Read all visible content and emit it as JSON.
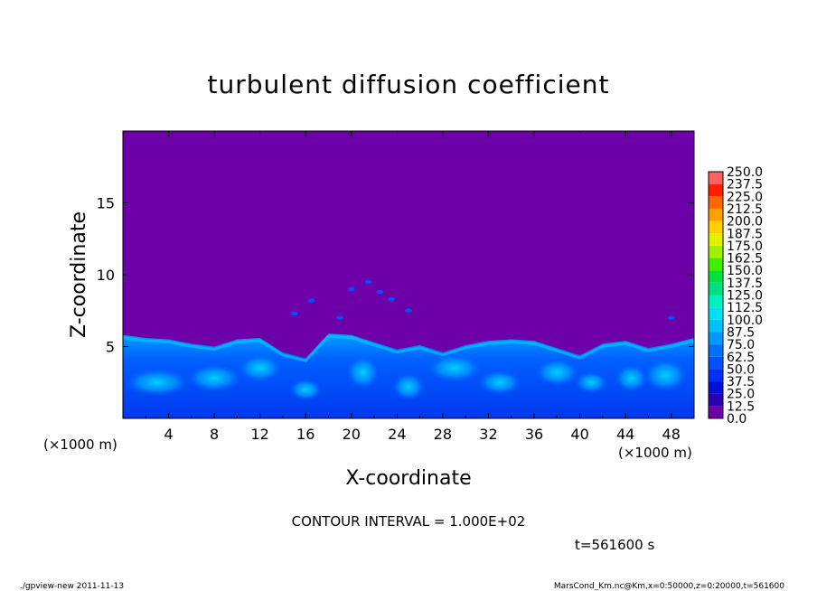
{
  "chart_data": {
    "type": "heatmap",
    "title": "turbulent diffusion coefficient",
    "xlabel": "X-coordinate",
    "ylabel": "Z-coordinate",
    "x_unit": "(×1000 m)",
    "y_unit": "(×1000 m)",
    "xlim": [
      0,
      50
    ],
    "ylim": [
      0,
      20
    ],
    "x_ticks": [
      "4",
      "8",
      "12",
      "16",
      "20",
      "24",
      "28",
      "32",
      "36",
      "40",
      "44",
      "48"
    ],
    "y_ticks": [
      "5",
      "10",
      "15"
    ],
    "colorbar_levels": [
      "0.0",
      "12.5",
      "25.0",
      "37.5",
      "50.0",
      "62.5",
      "75.0",
      "87.5",
      "100.0",
      "112.5",
      "125.0",
      "137.5",
      "150.0",
      "162.5",
      "175.0",
      "187.5",
      "200.0",
      "212.5",
      "225.0",
      "237.5",
      "250.0"
    ],
    "colorbar_colors": [
      "#6e00aa",
      "#2a00b4",
      "#0010d8",
      "#0030f4",
      "#0050ff",
      "#0070ff",
      "#0098ff",
      "#00c0ff",
      "#00e0f0",
      "#00f0c0",
      "#00e080",
      "#00e040",
      "#40f000",
      "#a0f000",
      "#e0f000",
      "#ffd000",
      "#ffa000",
      "#ff6800",
      "#ff2000",
      "#ff6060"
    ],
    "profile_x": [
      0,
      2,
      4,
      6,
      8,
      10,
      12,
      14,
      16,
      18,
      20,
      22,
      24,
      26,
      28,
      30,
      32,
      34,
      36,
      38,
      40,
      42,
      44,
      46,
      48,
      50
    ],
    "profile_z": [
      5.8,
      5.6,
      5.5,
      5.2,
      5.0,
      5.5,
      5.6,
      4.6,
      4.2,
      5.9,
      5.8,
      5.3,
      4.8,
      5.1,
      4.6,
      5.1,
      5.4,
      5.5,
      5.4,
      4.9,
      4.4,
      5.2,
      5.4,
      4.9,
      5.2,
      5.6
    ]
  },
  "contour_interval": "CONTOUR INTERVAL = 1.000E+02",
  "time_label": "t=561600 s",
  "footer_left": "./gpview-new   2011-11-13",
  "footer_right": "MarsCond_Km.nc@Km,x=0:50000,z=0:20000,t=561600"
}
